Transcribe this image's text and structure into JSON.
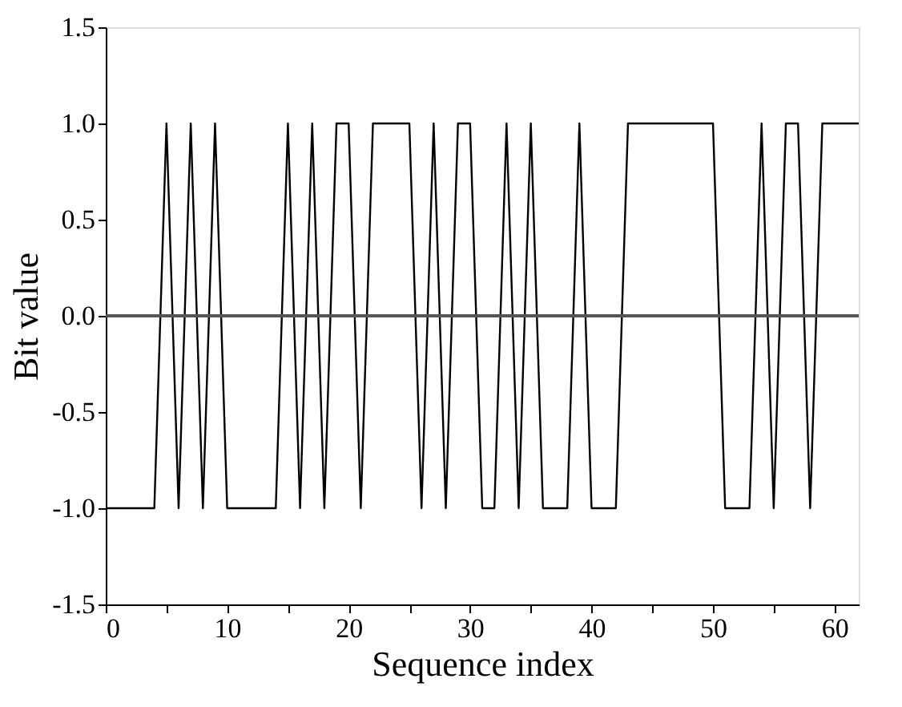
{
  "chart_data": {
    "type": "line",
    "xlabel": "Sequence index",
    "ylabel": "Bit value",
    "x": [
      0,
      1,
      2,
      3,
      4,
      5,
      6,
      7,
      8,
      9,
      10,
      11,
      12,
      13,
      14,
      15,
      16,
      17,
      18,
      19,
      20,
      21,
      22,
      23,
      24,
      25,
      26,
      27,
      28,
      29,
      30,
      31,
      32,
      33,
      34,
      35,
      36,
      37,
      38,
      39,
      40,
      41,
      42,
      43,
      44,
      45,
      46,
      47,
      48,
      49,
      50,
      51,
      52,
      53,
      54,
      55,
      56,
      57,
      58,
      59,
      60,
      61,
      62
    ],
    "series": [
      {
        "color": "#000000",
        "values": [
          -1,
          -1,
          -1,
          -1,
          -1,
          1,
          -1,
          1,
          -1,
          1,
          -1,
          -1,
          -1,
          -1,
          -1,
          1,
          -1,
          1,
          -1,
          1,
          1,
          -1,
          1,
          1,
          1,
          1,
          -1,
          1,
          -1,
          1,
          1,
          -1,
          -1,
          1,
          -1,
          1,
          -1,
          -1,
          -1,
          1,
          -1,
          -1,
          -1,
          1,
          1,
          1,
          1,
          1,
          1,
          1,
          1,
          -1,
          -1,
          -1,
          1,
          -1,
          1,
          1,
          -1,
          1,
          1,
          1,
          1
        ]
      }
    ],
    "xlim": [
      0,
      62
    ],
    "xticks": [
      0,
      {
        "value": 5,
        "label": null
      },
      10,
      {
        "value": 15,
        "label": null
      },
      20,
      {
        "value": 25,
        "label": null
      },
      30,
      {
        "value": 35,
        "label": null
      },
      40,
      {
        "value": 45,
        "label": null
      },
      50,
      {
        "value": 55,
        "label": null
      },
      60
    ],
    "ylim": [
      -1.5,
      1.5
    ],
    "yticks": [
      {
        "value": -1.5,
        "label": "-1.5"
      },
      {
        "value": -1,
        "label": "-1.0"
      },
      {
        "value": -0.5,
        "label": "-0.5"
      },
      {
        "value": 0,
        "label": "0.0"
      },
      {
        "value": 0.5,
        "label": "0.5"
      },
      {
        "value": 1,
        "label": "1.0"
      },
      {
        "value": 1.5,
        "label": "1.5"
      }
    ],
    "ref_lines": [
      {
        "axis": "y",
        "value": 0,
        "color": "#555555"
      }
    ],
    "grid": false,
    "marker": "none",
    "line_style": "solid"
  }
}
